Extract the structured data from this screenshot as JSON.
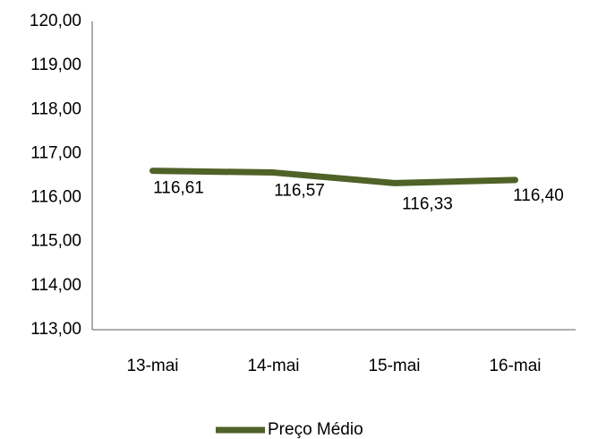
{
  "chart_data": {
    "type": "line",
    "categories": [
      "13-mai",
      "14-mai",
      "15-mai",
      "16-mai"
    ],
    "series": [
      {
        "name": "Preço Médio",
        "values": [
          116.61,
          116.57,
          116.33,
          116.4
        ],
        "labels": [
          "116,61",
          "116,57",
          "116,33",
          "116,40"
        ],
        "color": "#4f6228"
      }
    ],
    "ylim": [
      113,
      120
    ],
    "yticks": [
      {
        "value": 120,
        "label": "120,00"
      },
      {
        "value": 119,
        "label": "119,00"
      },
      {
        "value": 118,
        "label": "118,00"
      },
      {
        "value": 117,
        "label": "117,00"
      },
      {
        "value": 116,
        "label": "116,00"
      },
      {
        "value": 115,
        "label": "115,00"
      },
      {
        "value": 114,
        "label": "114,00"
      },
      {
        "value": 113,
        "label": "113,00"
      }
    ],
    "grid": false,
    "legend_position": "bottom",
    "title": "",
    "xlabel": "",
    "ylabel": ""
  }
}
